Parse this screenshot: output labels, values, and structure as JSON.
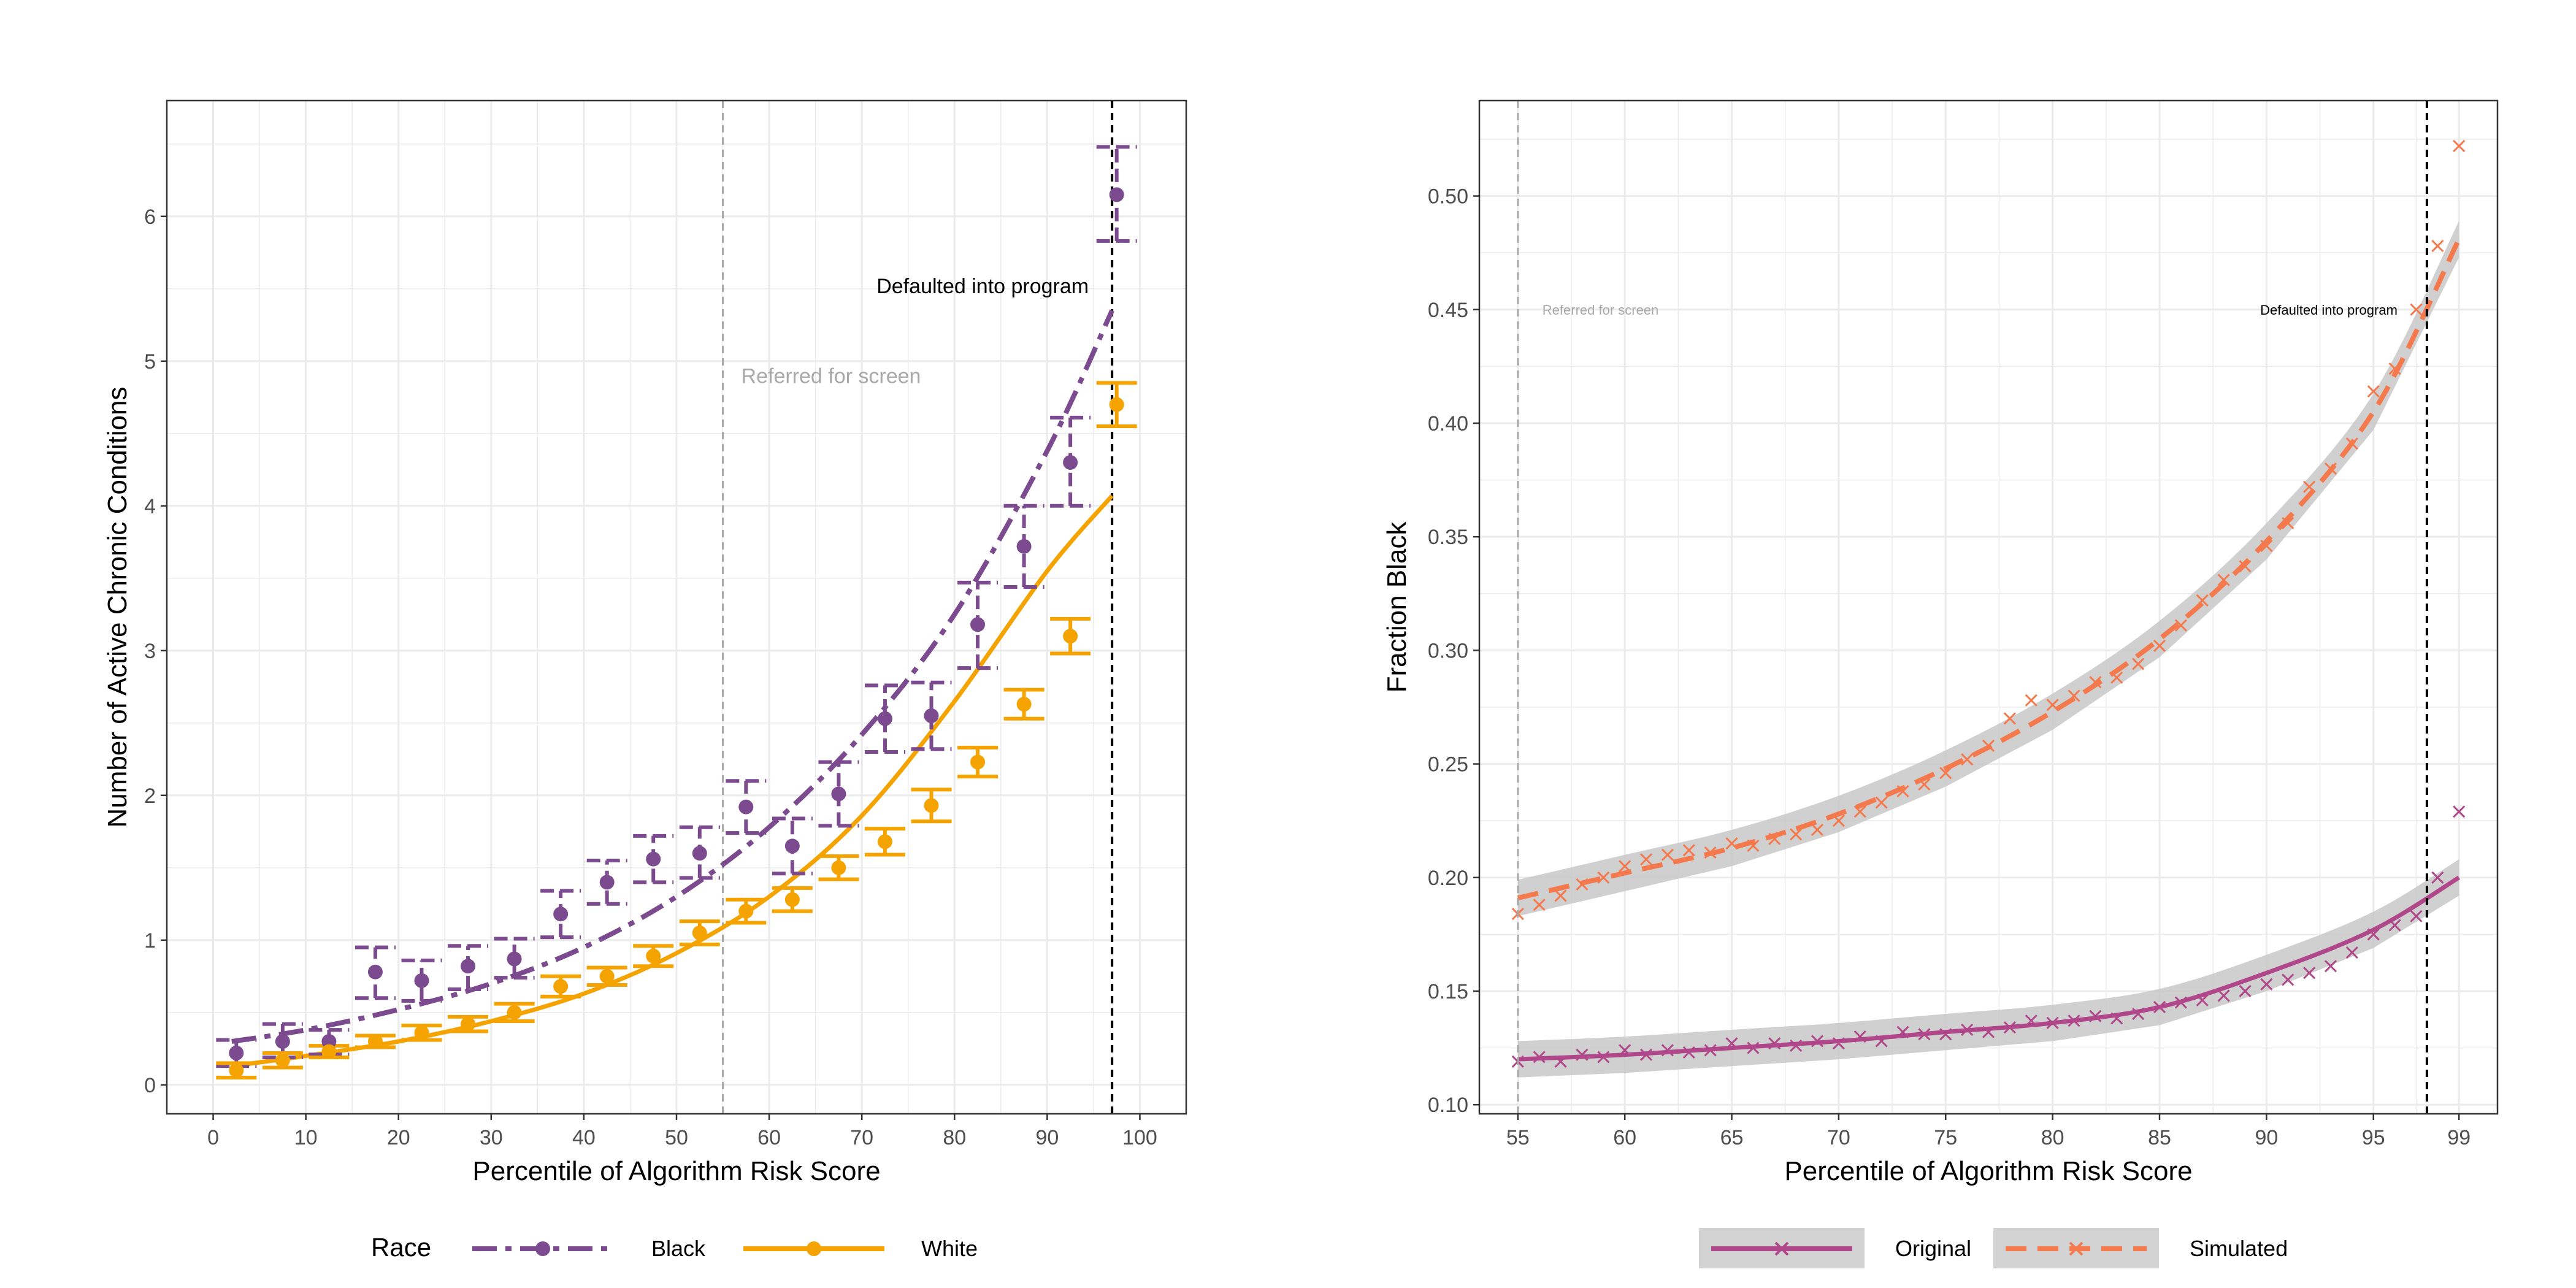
{
  "colors": {
    "black_race": "#7B4A8F",
    "white_race": "#F5A300",
    "original": "#B0478A",
    "simulated": "#F47A4E",
    "ribbon": "#C8C8C8",
    "threshold_screen": "#A8A8A8",
    "threshold_program": "#000000",
    "grid": "#EBEBEB",
    "axis_text": "#4D4D4D"
  },
  "chart_data": [
    {
      "type": "scatter",
      "xlabel": "Percentile of Algorithm Risk Score",
      "ylabel": "Number of Active Chronic Conditions",
      "xlim": [
        -5,
        105
      ],
      "ylim": [
        -0.2,
        6.8
      ],
      "xticks": [
        0,
        10,
        20,
        30,
        40,
        50,
        60,
        70,
        80,
        90,
        100
      ],
      "yticks": [
        0,
        1,
        2,
        3,
        4,
        5,
        6
      ],
      "grid": true,
      "legend": {
        "title": "Race",
        "placement": "bottom"
      },
      "annotations": [
        {
          "text": "Referred for screen",
          "x": 55
        },
        {
          "text": "Defaulted into program",
          "x": 97
        }
      ],
      "series": [
        {
          "name": "Black",
          "x": [
            2.5,
            7.5,
            12.5,
            17.5,
            22.5,
            27.5,
            32.5,
            37.5,
            42.5,
            47.5,
            52.5,
            57.5,
            62.5,
            67.5,
            72.5,
            77.5,
            82.5,
            87.5,
            92.5,
            97.5
          ],
          "y": [
            0.22,
            0.3,
            0.3,
            0.78,
            0.72,
            0.82,
            0.87,
            1.18,
            1.4,
            1.56,
            1.6,
            1.92,
            1.65,
            2.01,
            2.53,
            2.55,
            3.18,
            3.72,
            4.3,
            6.15
          ],
          "ylow": [
            0.13,
            0.19,
            0.21,
            0.6,
            0.58,
            0.66,
            0.74,
            1.02,
            1.25,
            1.4,
            1.43,
            1.74,
            1.46,
            1.79,
            2.3,
            2.32,
            2.88,
            3.44,
            4.0,
            5.83
          ],
          "yhigh": [
            0.31,
            0.42,
            0.38,
            0.95,
            0.86,
            0.96,
            1.01,
            1.34,
            1.55,
            1.72,
            1.78,
            2.1,
            1.84,
            2.23,
            2.76,
            2.78,
            3.47,
            4.0,
            4.61,
            6.48
          ],
          "fit_x": [
            2,
            10,
            20,
            30,
            40,
            50,
            60,
            70,
            80,
            90,
            97
          ],
          "fit_y": [
            0.3,
            0.38,
            0.52,
            0.7,
            0.95,
            1.3,
            1.78,
            2.42,
            3.25,
            4.38,
            5.35
          ]
        },
        {
          "name": "White",
          "x": [
            2.5,
            7.5,
            12.5,
            17.5,
            22.5,
            27.5,
            32.5,
            37.5,
            42.5,
            47.5,
            52.5,
            57.5,
            62.5,
            67.5,
            72.5,
            77.5,
            82.5,
            87.5,
            92.5,
            97.5
          ],
          "y": [
            0.1,
            0.17,
            0.23,
            0.3,
            0.36,
            0.42,
            0.5,
            0.68,
            0.75,
            0.89,
            1.05,
            1.2,
            1.28,
            1.5,
            1.68,
            1.93,
            2.23,
            2.63,
            3.1,
            4.7
          ],
          "ylow": [
            0.05,
            0.12,
            0.19,
            0.26,
            0.31,
            0.37,
            0.44,
            0.61,
            0.69,
            0.82,
            0.97,
            1.12,
            1.2,
            1.42,
            1.59,
            1.82,
            2.13,
            2.53,
            2.98,
            4.55
          ],
          "yhigh": [
            0.15,
            0.22,
            0.27,
            0.34,
            0.41,
            0.47,
            0.56,
            0.75,
            0.81,
            0.96,
            1.13,
            1.28,
            1.36,
            1.58,
            1.77,
            2.04,
            2.33,
            2.73,
            3.22,
            4.85
          ],
          "fit_x": [
            2,
            10,
            20,
            30,
            40,
            50,
            60,
            70,
            80,
            90,
            97
          ],
          "fit_y": [
            0.13,
            0.2,
            0.3,
            0.44,
            0.63,
            0.91,
            1.3,
            1.86,
            2.65,
            3.55,
            4.07
          ]
        }
      ]
    },
    {
      "type": "scatter",
      "xlabel": "Percentile of Algorithm Risk Score",
      "ylabel": "Fraction Black",
      "xlim": [
        53.2,
        100.8
      ],
      "ylim": [
        0.096,
        0.542
      ],
      "xticks": [
        55,
        60,
        65,
        70,
        75,
        80,
        85,
        90,
        95,
        99
      ],
      "yticks": [
        0.1,
        0.15,
        0.2,
        0.25,
        0.3,
        0.35,
        0.4,
        0.45,
        0.5
      ],
      "ytick_labels": [
        "0.10",
        "0.15",
        "0.20",
        "0.25",
        "0.30",
        "0.35",
        "0.40",
        "0.45",
        "0.50"
      ],
      "grid": true,
      "legend": {
        "placement": "bottom"
      },
      "annotations": [
        {
          "text": "Referred for screen",
          "x": 55
        },
        {
          "text": "Defaulted into program",
          "x": 97.5
        }
      ],
      "series": [
        {
          "name": "Original",
          "x": [
            55,
            56,
            57,
            58,
            59,
            60,
            61,
            62,
            63,
            64,
            65,
            66,
            67,
            68,
            69,
            70,
            71,
            72,
            73,
            74,
            75,
            76,
            77,
            78,
            79,
            80,
            81,
            82,
            83,
            84,
            85,
            86,
            87,
            88,
            89,
            90,
            91,
            92,
            93,
            94,
            95,
            96,
            97,
            98,
            99
          ],
          "y": [
            0.119,
            0.121,
            0.119,
            0.122,
            0.121,
            0.124,
            0.122,
            0.124,
            0.123,
            0.124,
            0.127,
            0.125,
            0.127,
            0.126,
            0.128,
            0.127,
            0.13,
            0.128,
            0.132,
            0.131,
            0.131,
            0.133,
            0.132,
            0.134,
            0.137,
            0.136,
            0.137,
            0.139,
            0.138,
            0.14,
            0.143,
            0.145,
            0.146,
            0.148,
            0.15,
            0.153,
            0.155,
            0.158,
            0.161,
            0.167,
            0.175,
            0.179,
            0.183,
            0.2,
            0.229
          ],
          "fit_x": [
            55,
            60,
            65,
            70,
            75,
            80,
            85,
            90,
            95,
            99
          ],
          "fit_y": [
            0.12,
            0.122,
            0.125,
            0.128,
            0.132,
            0.136,
            0.143,
            0.158,
            0.177,
            0.2
          ]
        },
        {
          "name": "Simulated",
          "x": [
            55,
            56,
            57,
            58,
            59,
            60,
            61,
            62,
            63,
            64,
            65,
            66,
            67,
            68,
            69,
            70,
            71,
            72,
            73,
            74,
            75,
            76,
            77,
            78,
            79,
            80,
            81,
            82,
            83,
            84,
            85,
            86,
            87,
            88,
            89,
            90,
            91,
            92,
            93,
            94,
            95,
            96,
            97,
            98,
            99
          ],
          "y": [
            0.184,
            0.188,
            0.192,
            0.197,
            0.2,
            0.205,
            0.208,
            0.21,
            0.212,
            0.211,
            0.215,
            0.214,
            0.217,
            0.219,
            0.221,
            0.225,
            0.229,
            0.233,
            0.238,
            0.241,
            0.246,
            0.252,
            0.258,
            0.27,
            0.278,
            0.276,
            0.28,
            0.286,
            0.288,
            0.294,
            0.302,
            0.311,
            0.322,
            0.331,
            0.337,
            0.346,
            0.356,
            0.372,
            0.38,
            0.391,
            0.414,
            0.424,
            0.45,
            0.478,
            0.522
          ],
          "fit_x": [
            55,
            60,
            65,
            70,
            75,
            80,
            85,
            90,
            95,
            99
          ],
          "fit_y": [
            0.191,
            0.202,
            0.213,
            0.228,
            0.248,
            0.273,
            0.305,
            0.348,
            0.405,
            0.481
          ],
          "band": 0.008
        }
      ]
    }
  ]
}
